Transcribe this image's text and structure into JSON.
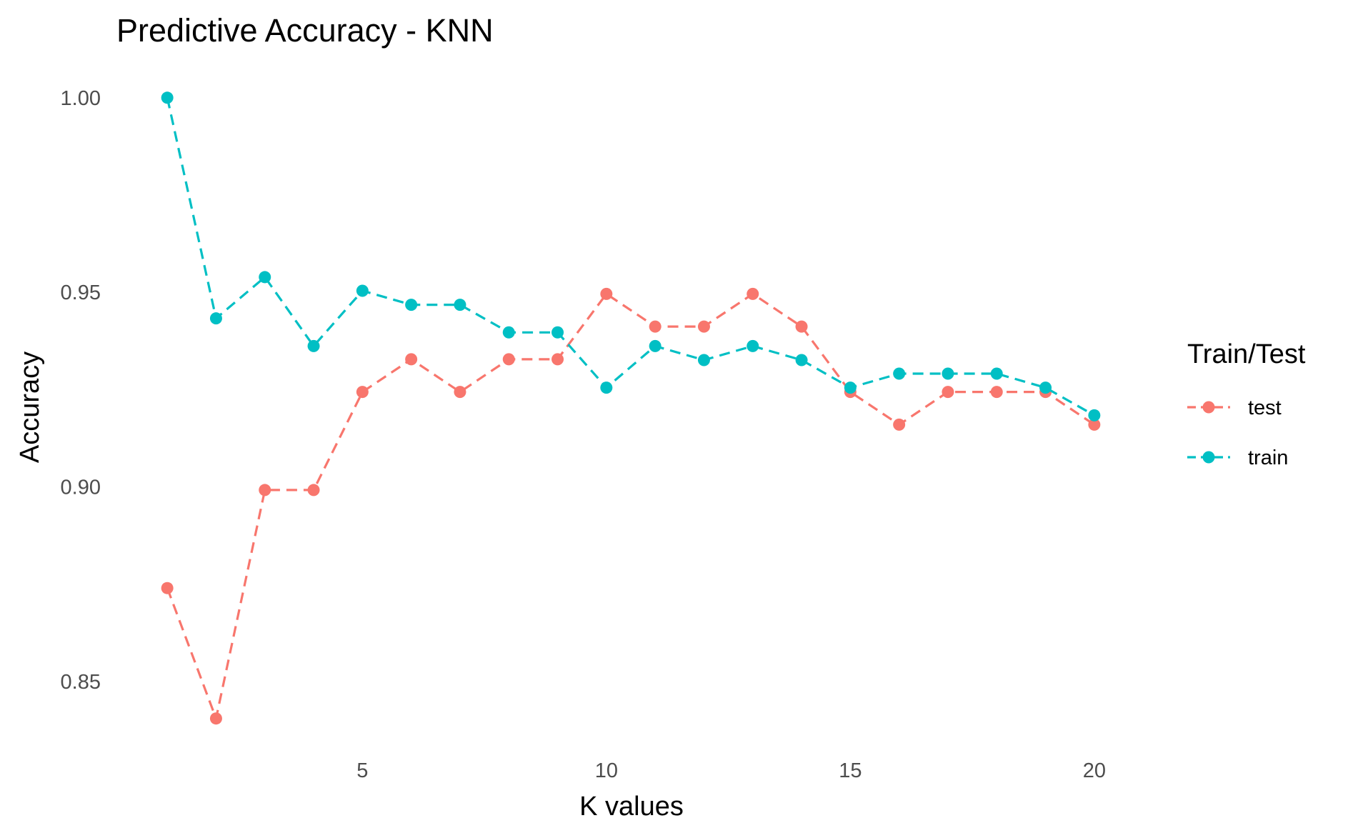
{
  "chart_data": {
    "type": "line",
    "title": "Predictive Accuracy - KNN",
    "xlabel": "K values",
    "ylabel": "Accuracy",
    "xlim": [
      0.5,
      20.5
    ],
    "ylim": [
      0.832,
      1.004
    ],
    "x_ticks": [
      5,
      10,
      15,
      20
    ],
    "x_tick_labels": [
      "5",
      "10",
      "15",
      "20"
    ],
    "y_ticks": [
      0.85,
      0.9,
      0.95,
      1.0
    ],
    "y_tick_labels": [
      "0.85",
      "0.90",
      "0.95",
      "1.00"
    ],
    "grid": false,
    "line_style": "dashed",
    "markers": true,
    "legend": {
      "title": "Train/Test",
      "placement": "right"
    },
    "x": [
      1,
      2,
      3,
      4,
      5,
      6,
      7,
      8,
      9,
      10,
      11,
      12,
      13,
      14,
      15,
      16,
      17,
      18,
      19,
      20
    ],
    "series": [
      {
        "name": "test",
        "color": "#F8766D",
        "values": [
          0.874,
          0.8405,
          0.8992,
          0.8992,
          0.9244,
          0.9328,
          0.9244,
          0.9328,
          0.9328,
          0.9496,
          0.9412,
          0.9412,
          0.9496,
          0.9412,
          0.9244,
          0.916,
          0.9244,
          0.9244,
          0.9244,
          0.916
        ]
      },
      {
        "name": "train",
        "color": "#00BFC4",
        "values": [
          1.0,
          0.9433,
          0.9539,
          0.9362,
          0.9504,
          0.9468,
          0.9468,
          0.9397,
          0.9397,
          0.9255,
          0.9362,
          0.9326,
          0.9362,
          0.9326,
          0.9255,
          0.9291,
          0.9291,
          0.9291,
          0.9255,
          0.9184
        ]
      }
    ]
  }
}
